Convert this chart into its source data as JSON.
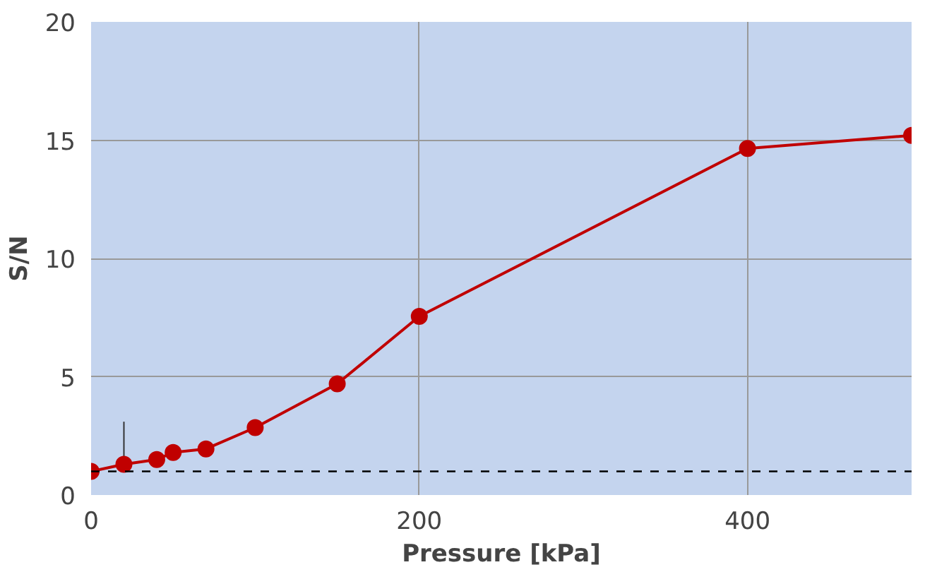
{
  "chart_data": {
    "type": "line",
    "xlabel": "Pressure [kPa]",
    "ylabel": "S/N",
    "x": [
      0,
      20,
      40,
      50,
      70,
      100,
      150,
      200,
      400,
      500
    ],
    "series": [
      {
        "color": "#c00000",
        "values": [
          1.0,
          1.3,
          1.5,
          1.8,
          1.95,
          2.85,
          4.7,
          7.55,
          14.65,
          15.2
        ],
        "errors": [
          null,
          [
            1.3,
            3.1
          ],
          null,
          null,
          null,
          null,
          null,
          null,
          null,
          null
        ]
      }
    ],
    "xlim": [
      0,
      500
    ],
    "ylim": [
      0,
      20
    ],
    "xticks": [
      0,
      200,
      400
    ],
    "yticks": [
      0,
      5,
      10,
      15,
      20
    ],
    "grid": true,
    "marker": "circle",
    "line_style": "solid",
    "ref_lines": [
      {
        "axis": "y",
        "value": 1,
        "color": "#000000",
        "line_style": "dashed"
      }
    ]
  }
}
